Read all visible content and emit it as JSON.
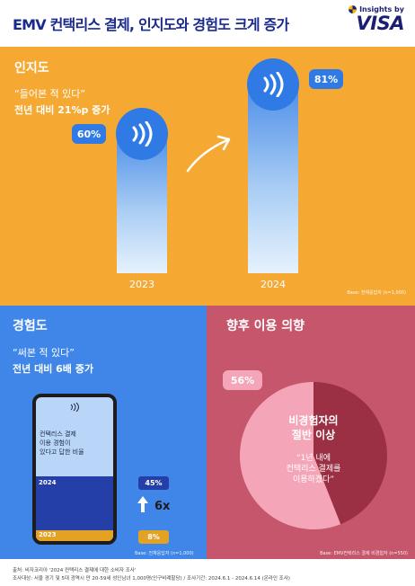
{
  "header": {
    "title": "EMV 컨택리스 결제, 인지도와 경험도 크게 증가",
    "brand_small": "Insights by",
    "brand_large": "VISA"
  },
  "awareness": {
    "heading": "인지도",
    "quote": "“들어본 적 있다”",
    "sub": "전년 대비 21%p 증가",
    "base": "Base: 전체응답자 (n=1,000)",
    "colors": {
      "bg": "#f5a933",
      "accent": "#2f7ae5"
    }
  },
  "experience": {
    "heading": "경험도",
    "quote": "“써본 적 있다”",
    "sub": "전년 대비 6배 증가",
    "phone_text": [
      "컨택리스 결제",
      "이용 경험이",
      "있다고 답한 비율"
    ],
    "multiplier": "6x",
    "base": "Base: 전체응답자 (n=1,000)",
    "colors": {
      "bg": "#3f86e8",
      "y2024": "#2440a8",
      "y2023": "#e4a224"
    }
  },
  "intent": {
    "heading": "향후 이용 의향",
    "center_title_1": "비경험자의",
    "center_title_2": "절반 이상",
    "center_quote_1": "“1년 내에",
    "center_quote_2": "컨택리스 결제를",
    "center_quote_3": "이용하겠다”",
    "base": "Base: EMV컨택리스 결제 비경험자 (n=550)",
    "colors": {
      "bg": "#c5566b",
      "pie_main": "#f4a6b8",
      "pie_rest": "#9b2f43"
    }
  },
  "footer": {
    "line1": "출처: 비자코리아 '2024 컨택리스 결제에 대한 소비자 조사'",
    "line2": "조사대상: 서울 경기 및 5대 광역시 만 20-59세 성인남녀 1,000명(인구비례할당) / 조사기간: 2024.6.1 - 2024.6.14 (온라인 조사)"
  },
  "chart_data": [
    {
      "type": "bar",
      "categories": [
        "2023",
        "2024"
      ],
      "values": [
        60,
        81
      ],
      "labels": [
        "60%",
        "81%"
      ],
      "xlabel": "",
      "ylabel": ""
    },
    {
      "type": "bar",
      "categories": [
        "2024",
        "2023"
      ],
      "values": [
        45,
        8
      ],
      "labels": [
        "45%",
        "8%"
      ]
    },
    {
      "type": "pie",
      "categories": [
        "",
        ""
      ],
      "values": [
        56,
        44
      ],
      "labels": [
        "56%",
        ""
      ]
    }
  ]
}
